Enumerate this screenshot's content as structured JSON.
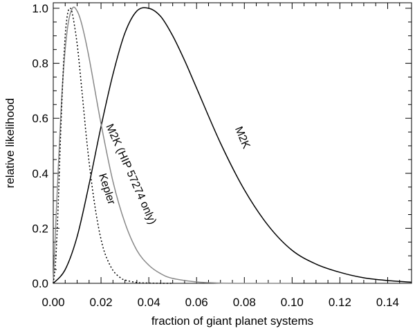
{
  "chart_data": {
    "type": "line",
    "title": "",
    "xlabel": "fraction of giant planet systems",
    "ylabel": "relative likelihood",
    "xlim": [
      0.0,
      0.15
    ],
    "ylim": [
      0.0,
      1.02
    ],
    "xticks": [
      "0.00",
      "0.02",
      "0.04",
      "0.06",
      "0.08",
      "0.10",
      "0.12",
      "0.14"
    ],
    "yticks": [
      "0.0",
      "0.2",
      "0.4",
      "0.6",
      "0.8",
      "1.0"
    ],
    "grid": false,
    "legend": "none",
    "series": [
      {
        "name": "M2K",
        "color": "#000000",
        "dash": "solid",
        "x": [
          0.0,
          0.005,
          0.01,
          0.015,
          0.02,
          0.025,
          0.03,
          0.035,
          0.04,
          0.045,
          0.05,
          0.055,
          0.06,
          0.07,
          0.08,
          0.09,
          0.1,
          0.11,
          0.12,
          0.13,
          0.14,
          0.15
        ],
        "y": [
          0.0,
          0.05,
          0.17,
          0.36,
          0.57,
          0.76,
          0.91,
          0.99,
          1.0,
          0.97,
          0.9,
          0.81,
          0.71,
          0.51,
          0.34,
          0.21,
          0.12,
          0.07,
          0.04,
          0.02,
          0.01,
          0.004
        ]
      },
      {
        "name": "M2K (HIP 57274 only)",
        "color": "#888888",
        "dash": "solid",
        "x": [
          0.0,
          0.002,
          0.004,
          0.006,
          0.008,
          0.01,
          0.012,
          0.015,
          0.02,
          0.025,
          0.03,
          0.035,
          0.04,
          0.045,
          0.05,
          0.06,
          0.07,
          0.08,
          0.09,
          0.1
        ],
        "y": [
          0.0,
          0.4,
          0.74,
          0.93,
          1.0,
          0.99,
          0.94,
          0.82,
          0.58,
          0.37,
          0.22,
          0.12,
          0.066,
          0.035,
          0.018,
          0.005,
          0.001,
          0.0,
          0.0,
          0.0
        ]
      },
      {
        "name": "Kepler",
        "color": "#000000",
        "dash": "dotted",
        "x": [
          0.0,
          0.001,
          0.002,
          0.003,
          0.004,
          0.005,
          0.006,
          0.007,
          0.008,
          0.01,
          0.012,
          0.014,
          0.016,
          0.018,
          0.02,
          0.022,
          0.025,
          0.028,
          0.03,
          0.035,
          0.04,
          0.045,
          0.05
        ],
        "y": [
          0.0,
          0.08,
          0.27,
          0.52,
          0.74,
          0.9,
          0.98,
          1.0,
          0.98,
          0.87,
          0.7,
          0.52,
          0.37,
          0.25,
          0.16,
          0.1,
          0.047,
          0.021,
          0.012,
          0.003,
          0.001,
          0.0,
          0.0
        ]
      }
    ],
    "annotations": [
      "M2K",
      "M2K (HIP 57274 only)",
      "Kepler"
    ]
  }
}
